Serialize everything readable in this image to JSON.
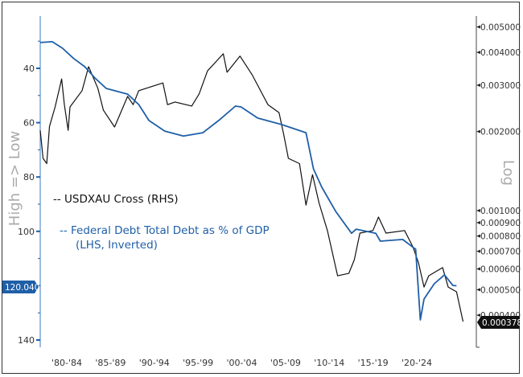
{
  "chart_data": {
    "type": "line",
    "title": "",
    "left_axis": {
      "label": "High => Low",
      "inverted": true,
      "scale": "linear",
      "ylim": [
        21,
        143
      ],
      "ticks": [
        40,
        60,
        80,
        100,
        120,
        140
      ],
      "color": "#1f5fa8"
    },
    "right_axis": {
      "label": "Log",
      "scale": "log",
      "ylim": [
        0.0003,
        0.0055
      ],
      "ticks": [
        "0.005000",
        "0.004000",
        "0.003000",
        "0.002000",
        "0.001000",
        "0.000900",
        "0.000800",
        "0.000700",
        "0.000600",
        "0.000500",
        "0.000400"
      ],
      "tick_values": [
        0.005,
        0.004,
        0.003,
        0.002,
        0.001,
        0.0009,
        0.0008,
        0.0007,
        0.0006,
        0.0005,
        0.0004
      ]
    },
    "x_tick_labels": [
      "'80-'84",
      "'85-'89",
      "'90-'94",
      "'95-'99",
      "'00-'04",
      "'05-'09",
      "'10-'14",
      "'15-'19",
      "'20-'24"
    ],
    "xlim": [
      1980,
      2025.6
    ],
    "grid": false,
    "legend_placement": "center-left",
    "series": [
      {
        "name": "-- USDXAU Cross (RHS)",
        "axis": "right",
        "color": "#111111",
        "last_value_label": "0.000378",
        "x": [
          1980.0,
          1980.3,
          1980.7,
          1981.0,
          1981.6,
          1982.3,
          1982.6,
          1983.0,
          1983.2,
          1984.5,
          1985.2,
          1986.2,
          1986.8,
          1988.0,
          1989.4,
          1990.0,
          1990.6,
          1993.2,
          1993.7,
          1994.5,
          1996.3,
          1997.1,
          1998.0,
          1999.7,
          2000.1,
          2001.5,
          2002.8,
          2004.5,
          2005.7,
          2006.2,
          2006.7,
          2007.9,
          2008.6,
          2009.3,
          2010.0,
          2010.9,
          2012.0,
          2013.2,
          2013.8,
          2014.4,
          2015.8,
          2016.4,
          2017.2,
          2019.2,
          2020.1,
          2020.7,
          2021.3,
          2021.8,
          2023.3,
          2023.9,
          2024.8,
          2025.5
        ],
        "y": [
          0.00202,
          0.00158,
          0.00151,
          0.00209,
          0.00248,
          0.00317,
          0.00253,
          0.00202,
          0.00248,
          0.00286,
          0.00353,
          0.00292,
          0.00241,
          0.00208,
          0.00272,
          0.00253,
          0.00286,
          0.00306,
          0.00253,
          0.00259,
          0.0025,
          0.00278,
          0.0034,
          0.00395,
          0.00336,
          0.00387,
          0.00329,
          0.00253,
          0.00236,
          0.00195,
          0.00158,
          0.00151,
          0.00105,
          0.00137,
          0.00107,
          0.00084,
          0.000565,
          0.000577,
          0.000651,
          0.000821,
          0.00084,
          0.000945,
          0.000821,
          0.00084,
          0.000728,
          0.000633,
          0.000512,
          0.000565,
          0.000607,
          0.000512,
          0.000491,
          0.000378
        ]
      },
      {
        "name": "-- Federal Debt Total Debt as % of GDP",
        "name_line2": "(LHS, Inverted)",
        "axis": "left",
        "color": "#1f5fa8",
        "last_value_label": "120.040",
        "x": [
          1980.0,
          1981.3,
          1982.4,
          1983.6,
          1984.8,
          1985.9,
          1987.1,
          1989.4,
          1990.6,
          1991.7,
          1993.4,
          1995.4,
          1997.5,
          1999.2,
          2001.0,
          2001.6,
          2003.4,
          2006.0,
          2008.6,
          2009.4,
          2010.3,
          2011.8,
          2013.5,
          2014.0,
          2016.1,
          2016.6,
          2019.0,
          2020.4,
          2020.9,
          2021.3,
          2022.4,
          2023.5,
          2024.4,
          2024.8
        ],
        "y": [
          30.5,
          30.2,
          32.6,
          36.4,
          39.4,
          43.6,
          47.4,
          49.5,
          53.3,
          59.2,
          63.1,
          64.9,
          63.7,
          59.2,
          53.9,
          54.2,
          58.3,
          60.7,
          63.7,
          77.0,
          83.8,
          92.7,
          100.7,
          99.2,
          100.7,
          103.6,
          103.0,
          106.6,
          132.6,
          124.9,
          119.3,
          116.0,
          119.9,
          120.04
        ]
      }
    ]
  }
}
